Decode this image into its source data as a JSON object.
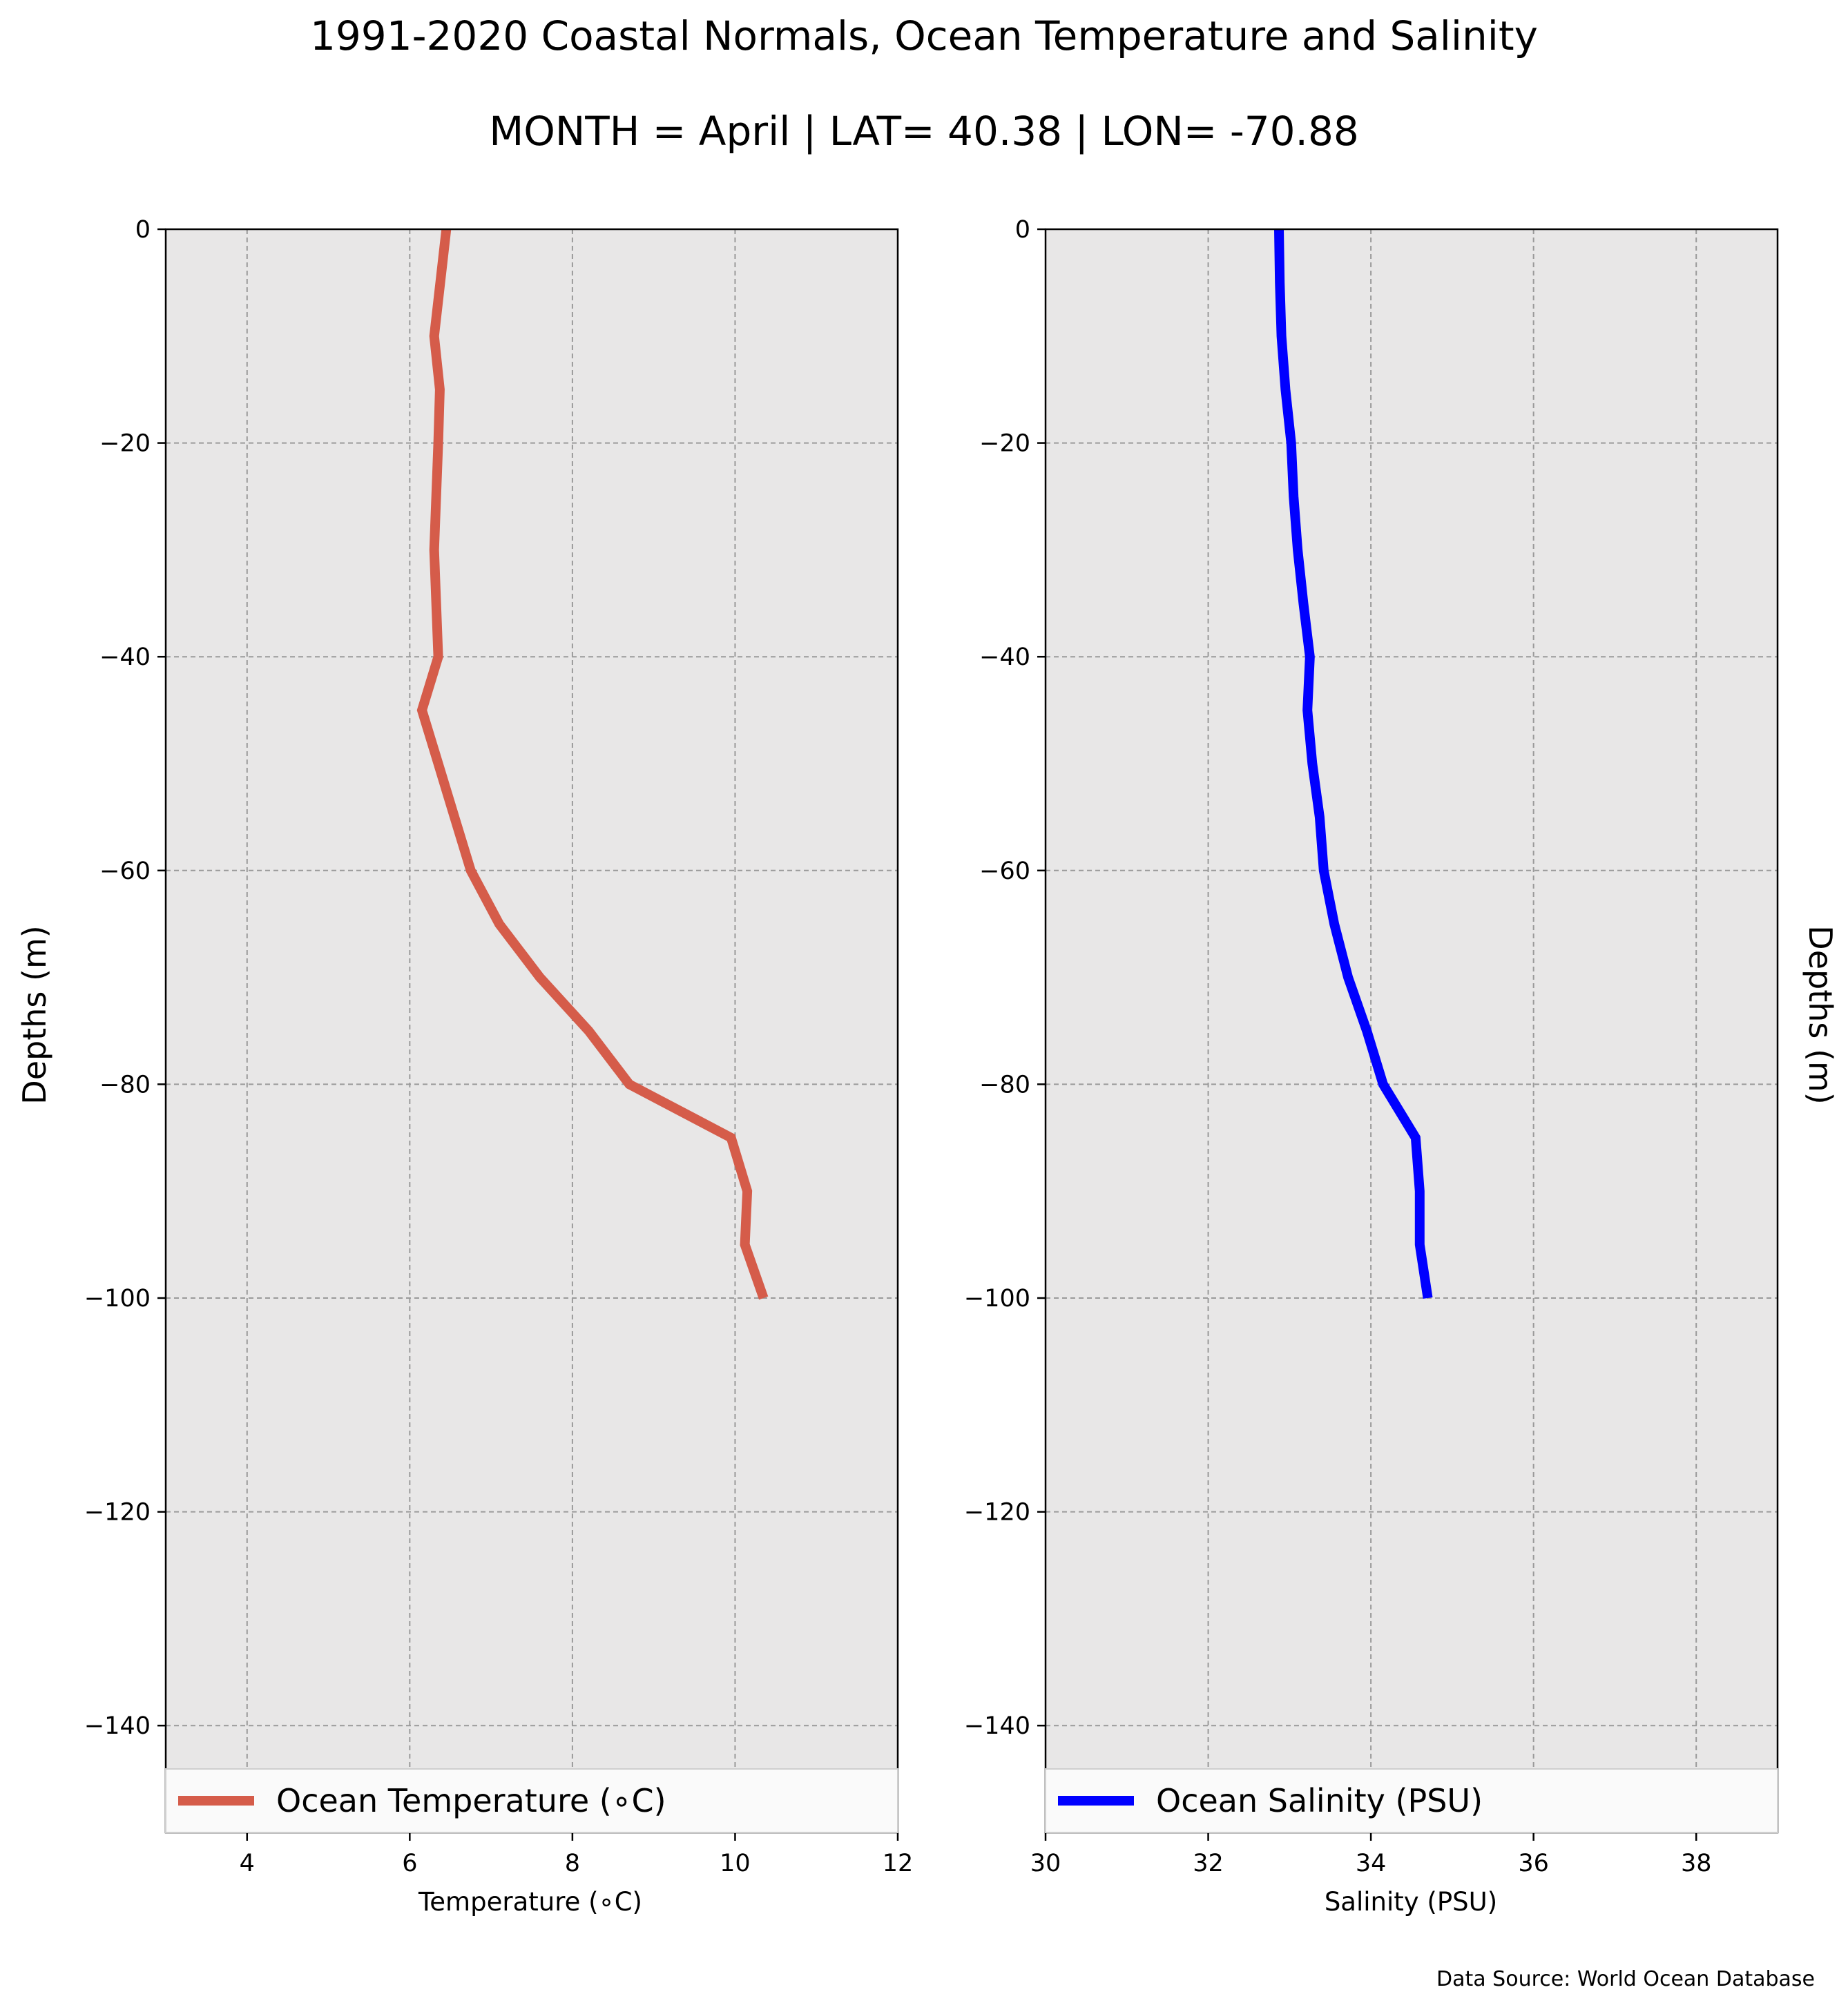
{
  "figure": {
    "title": "1991-2020 Coastal Normals, Ocean Temperature and Salinity",
    "subtitle": "MONTH = April | LAT= 40.38 | LON= -70.88",
    "source": "Data Source: World Ocean Database",
    "background_color": "#e8e7e7",
    "grid_color": "#9a9a9a"
  },
  "chart_data": [
    {
      "type": "line",
      "xlabel": "Temperature (∘C)",
      "ylabel": "Depths (m)",
      "xlim": [
        3,
        12
      ],
      "ylim": [
        -150,
        0
      ],
      "xticks": [
        4,
        6,
        8,
        10,
        12
      ],
      "yticks": [
        0,
        -20,
        -40,
        -60,
        -80,
        -100,
        -120,
        -140
      ],
      "grid": true,
      "legend_position": "bottom",
      "series": [
        {
          "name": "Ocean Temperature (∘C)",
          "color": "#d55c4a",
          "points": [
            {
              "x": 6.45,
              "y": 0
            },
            {
              "x": 6.3,
              "y": -10
            },
            {
              "x": 6.37,
              "y": -15
            },
            {
              "x": 6.35,
              "y": -20
            },
            {
              "x": 6.3,
              "y": -30
            },
            {
              "x": 6.35,
              "y": -40
            },
            {
              "x": 6.15,
              "y": -45
            },
            {
              "x": 6.35,
              "y": -50
            },
            {
              "x": 6.55,
              "y": -55
            },
            {
              "x": 6.75,
              "y": -60
            },
            {
              "x": 7.1,
              "y": -65
            },
            {
              "x": 7.6,
              "y": -70
            },
            {
              "x": 8.2,
              "y": -75
            },
            {
              "x": 8.7,
              "y": -80
            },
            {
              "x": 9.95,
              "y": -85
            },
            {
              "x": 10.15,
              "y": -90
            },
            {
              "x": 10.12,
              "y": -95
            },
            {
              "x": 10.35,
              "y": -100
            }
          ]
        }
      ]
    },
    {
      "type": "line",
      "xlabel": "Salinity (PSU)",
      "ylabel": "Depths (m)",
      "xlim": [
        30,
        39
      ],
      "ylim": [
        -150,
        0
      ],
      "xticks": [
        30,
        32,
        34,
        36,
        38
      ],
      "yticks": [
        0,
        -20,
        -40,
        -60,
        -80,
        -100,
        -120,
        -140
      ],
      "grid": true,
      "legend_position": "bottom",
      "series": [
        {
          "name": "Ocean Salinity (PSU)",
          "color": "#0000ff",
          "points": [
            {
              "x": 32.87,
              "y": 0
            },
            {
              "x": 32.88,
              "y": -5
            },
            {
              "x": 32.9,
              "y": -10
            },
            {
              "x": 32.95,
              "y": -15
            },
            {
              "x": 33.02,
              "y": -20
            },
            {
              "x": 33.05,
              "y": -25
            },
            {
              "x": 33.1,
              "y": -30
            },
            {
              "x": 33.17,
              "y": -35
            },
            {
              "x": 33.25,
              "y": -40
            },
            {
              "x": 33.22,
              "y": -45
            },
            {
              "x": 33.28,
              "y": -50
            },
            {
              "x": 33.37,
              "y": -55
            },
            {
              "x": 33.42,
              "y": -60
            },
            {
              "x": 33.55,
              "y": -65
            },
            {
              "x": 33.72,
              "y": -70
            },
            {
              "x": 33.95,
              "y": -75
            },
            {
              "x": 34.15,
              "y": -80
            },
            {
              "x": 34.55,
              "y": -85
            },
            {
              "x": 34.6,
              "y": -90
            },
            {
              "x": 34.6,
              "y": -95
            },
            {
              "x": 34.7,
              "y": -100
            }
          ]
        }
      ]
    }
  ]
}
